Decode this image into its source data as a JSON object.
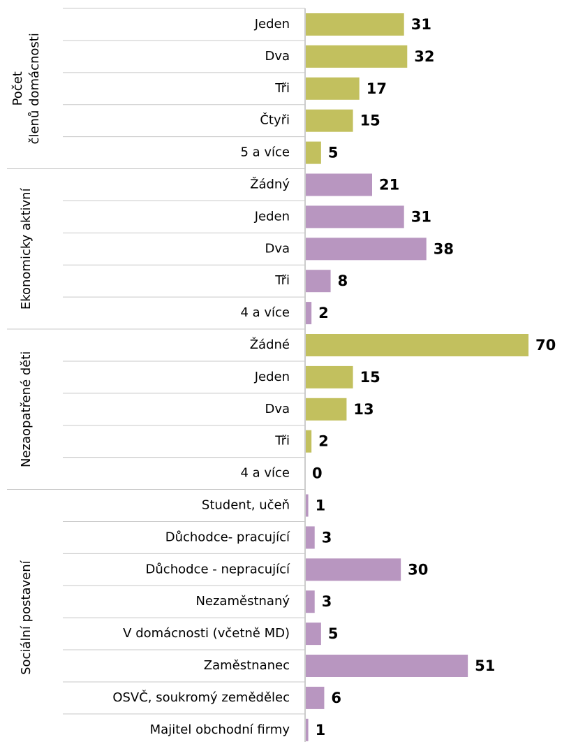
{
  "chart_data": {
    "type": "bar",
    "groups": [
      {
        "name": "Počet členů domácnosti",
        "color": "#c2c05e",
        "categories": [
          "Jeden",
          "Dva",
          "Tři",
          "Čtyři",
          "5 a více"
        ],
        "values": [
          31,
          32,
          17,
          15,
          5
        ]
      },
      {
        "name": "Ekonomicky aktivní",
        "color": "#b896c0",
        "categories": [
          "Žádný",
          "Jeden",
          "Dva",
          "Tři",
          "4 a více"
        ],
        "values": [
          21,
          31,
          38,
          8,
          2
        ]
      },
      {
        "name": "Nezaopatřené děti",
        "color": "#c2c05e",
        "categories": [
          "Žádné",
          "Jeden",
          "Dva",
          "Tři",
          "4 a více"
        ],
        "values": [
          70,
          15,
          13,
          2,
          0
        ]
      },
      {
        "name": "Sociální postavení",
        "color": "#b896c0",
        "categories": [
          "Student, učeň",
          "Důchodce- pracující",
          "Důchodce - nepracující",
          "Nezaměstnaný",
          "V domácnosti (včetně MD)",
          "Zaměstnanec",
          "OSVČ, soukromý zemědělec",
          "Majitel obchodní firmy"
        ],
        "values": [
          1,
          3,
          30,
          3,
          5,
          51,
          6,
          1
        ]
      }
    ]
  }
}
